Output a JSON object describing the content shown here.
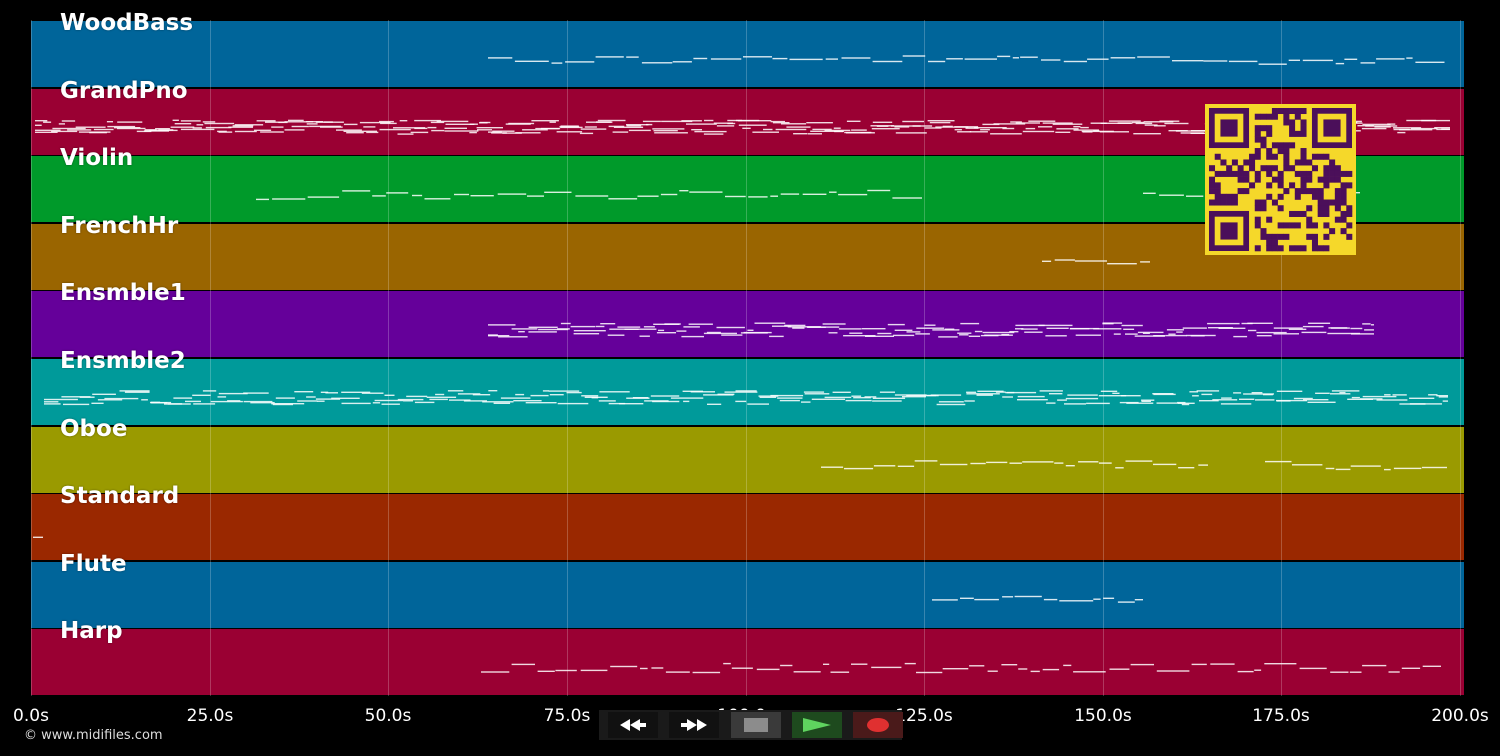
{
  "tracks": [
    {
      "name": "WoodBass",
      "color": "#00659a"
    },
    {
      "name": "GrandPno",
      "color": "#9a0033"
    },
    {
      "name": "Violin",
      "color": "#009a2a"
    },
    {
      "name": "FrenchHr",
      "color": "#9a6500"
    },
    {
      "name": "Ensmble1",
      "color": "#65009a"
    },
    {
      "name": "Ensmble2",
      "color": "#009a9a"
    },
    {
      "name": "Oboe",
      "color": "#9a9a00"
    },
    {
      "name": "Standard",
      "color": "#9a2800"
    },
    {
      "name": "Flute",
      "color": "#00659a"
    },
    {
      "name": "Harp",
      "color": "#9a0033"
    }
  ],
  "timeline": {
    "ticks": [
      "0.0s",
      "25.0s",
      "50.0s",
      "75.0s",
      "100.0s",
      "125.0s",
      "150.0s",
      "175.0s",
      "200.0s"
    ],
    "range_seconds": [
      0,
      200
    ]
  },
  "transport": {
    "rewind_icon": "rewind-icon",
    "fast_forward_icon": "fast-forward-icon",
    "stop_icon": "stop-icon",
    "play_icon": "play-icon",
    "record_icon": "record-icon",
    "play_color": "#5fd35f",
    "record_color": "#e03030"
  },
  "overlay": {
    "qr_icon": "qr-code-icon",
    "qr_bg": "#f5d82a",
    "qr_fg": "#4b0f5a"
  },
  "footer": {
    "copyright": "© www.midifiles.com"
  }
}
